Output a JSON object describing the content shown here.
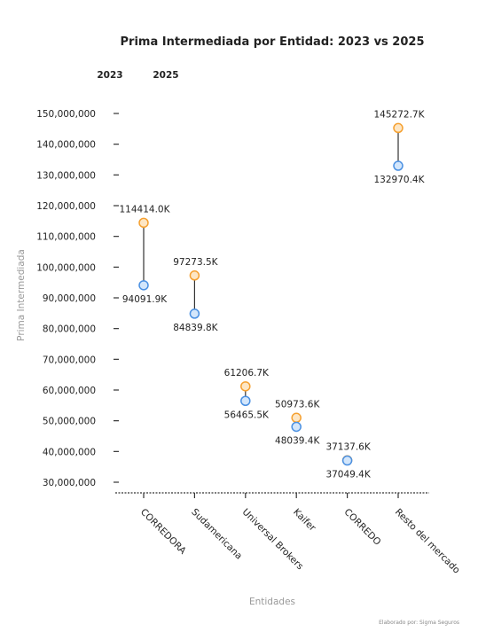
{
  "chart_data": {
    "type": "dumbbell",
    "title": "Prima Intermediada por Entidad: 2023 vs 2025",
    "xlabel": "Entidades",
    "ylabel": "Prima Intermediada",
    "ylim": [
      30000000,
      150000000
    ],
    "y_ticks": [
      30000000,
      40000000,
      50000000,
      60000000,
      70000000,
      80000000,
      90000000,
      100000000,
      110000000,
      120000000,
      130000000,
      140000000,
      150000000
    ],
    "y_tick_labels": [
      "30,000,000",
      "40,000,000",
      "50,000,000",
      "60,000,000",
      "70,000,000",
      "80,000,000",
      "90,000,000",
      "100,000,000",
      "110,000,000",
      "120,000,000",
      "130,000,000",
      "140,000,000",
      "150,000,000"
    ],
    "categories": [
      "CORREDORA",
      "Sudamericana",
      "Universal Brokers",
      "Kaifer",
      "CORREDO",
      "Resto del mercado"
    ],
    "series": [
      {
        "name": "2023",
        "color": "#4a90e2",
        "values": [
          94091900,
          84839800,
          56465500,
          48039400,
          37049400,
          132970400
        ],
        "labels": [
          "94091.9K",
          "84839.8K",
          "56465.5K",
          "48039.4K",
          "37049.4K",
          "132970.4K"
        ]
      },
      {
        "name": "2025",
        "color": "#f5a030",
        "values": [
          114414000,
          97273500,
          61206700,
          50973600,
          37137600,
          145272700
        ],
        "labels": [
          "114414.0K",
          "97273.5K",
          "61206.7K",
          "50973.6K",
          "37137.6K",
          "145272.7K"
        ]
      }
    ],
    "legend": {
      "position": "top-left"
    },
    "grid": false
  },
  "credit": "Elaborado por: Sigma Seguros"
}
